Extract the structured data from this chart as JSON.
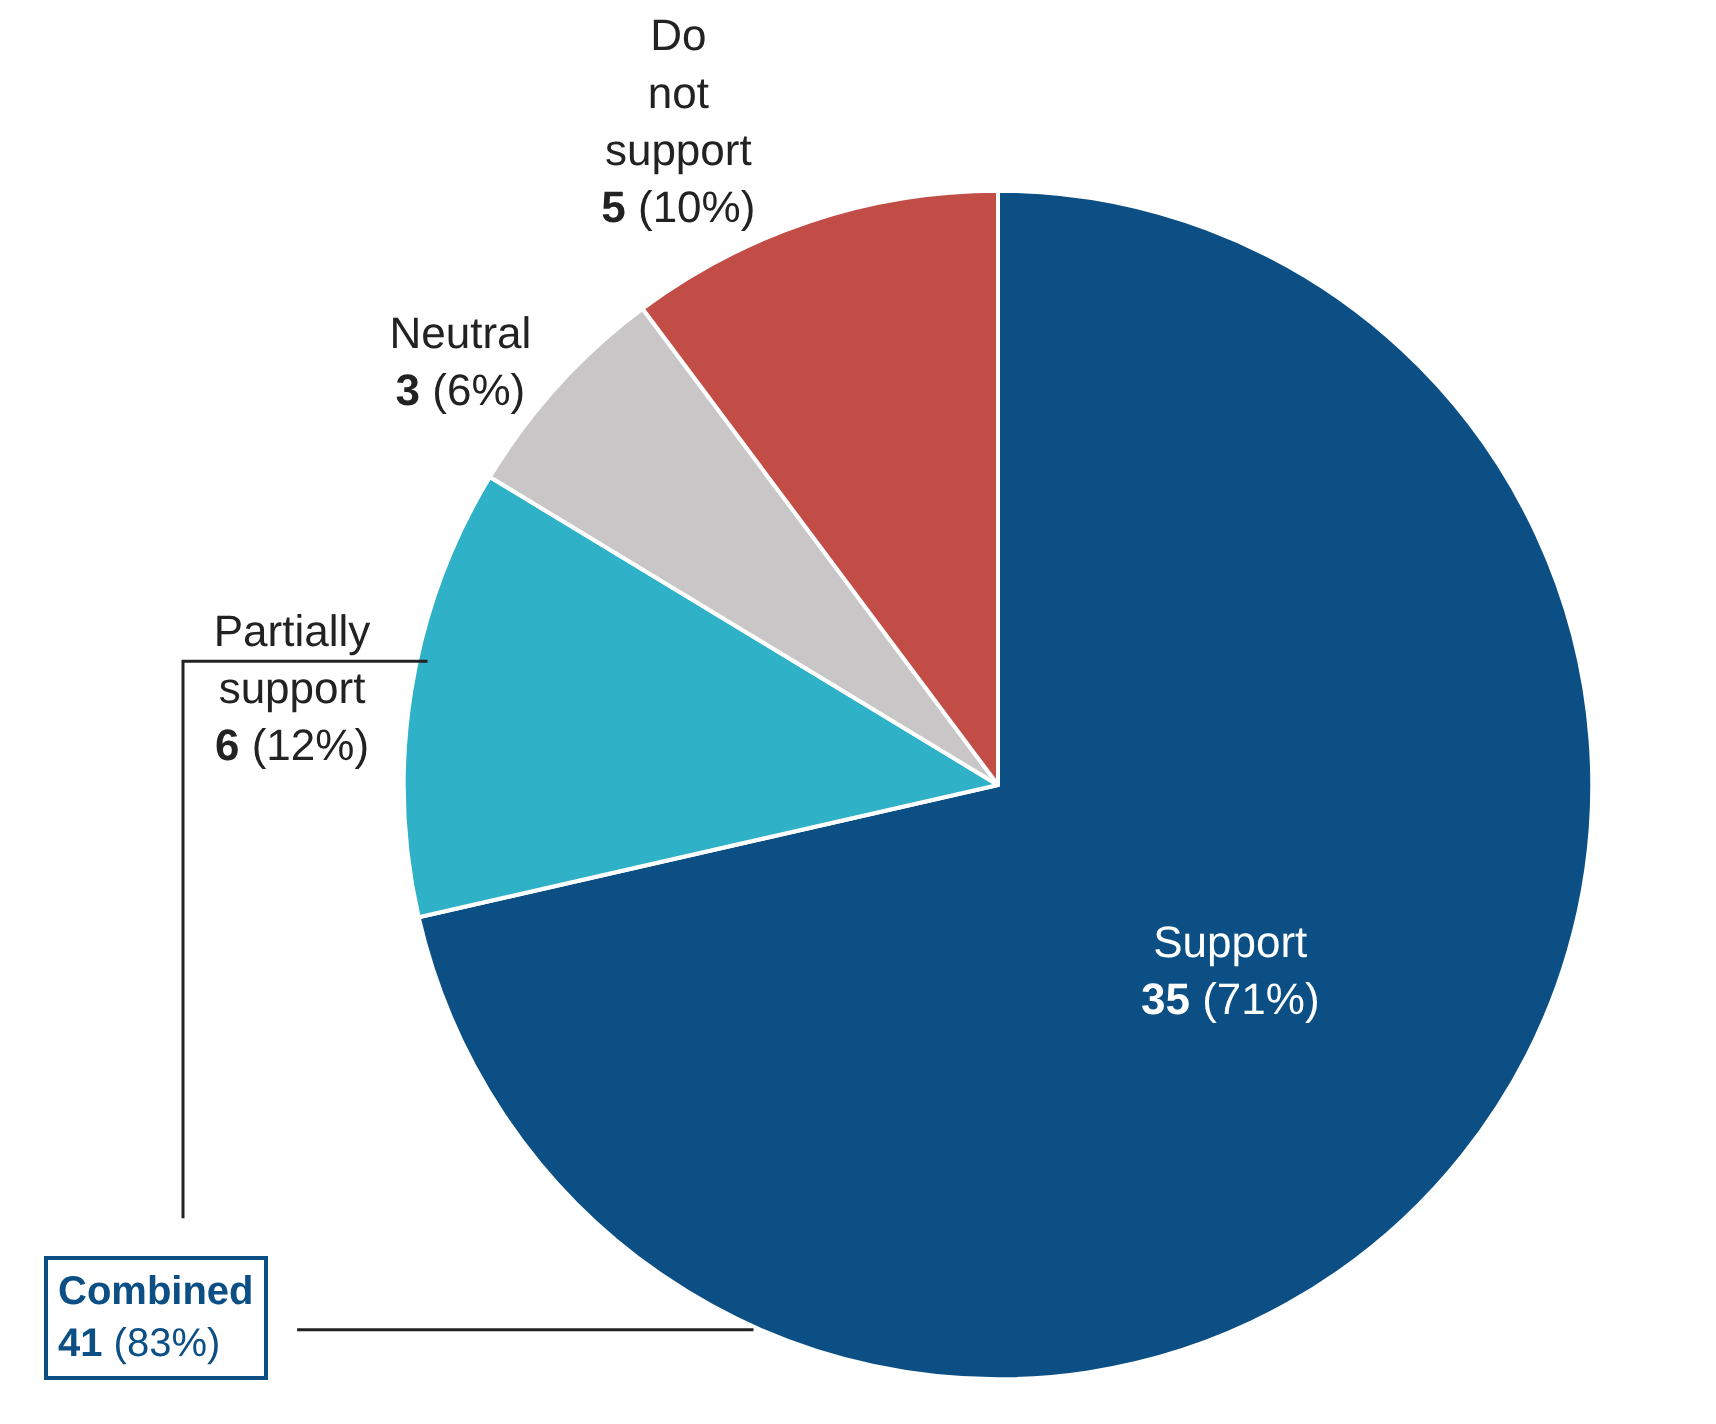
{
  "chart_data": {
    "type": "pie",
    "categories": [
      "Support",
      "Partially support",
      "Neutral",
      "Do not support"
    ],
    "values": [
      35,
      6,
      3,
      5
    ],
    "colors": [
      "#0b4f85",
      "#2fb1c8",
      "#c8c6c6",
      "#c24c46"
    ],
    "value_labels": [
      "35 (71%)",
      "6 (12%)",
      "3 (6%)",
      "5 (10%)"
    ],
    "annotations": [
      "Combined 41 (83%)"
    ],
    "legend": false
  }
}
